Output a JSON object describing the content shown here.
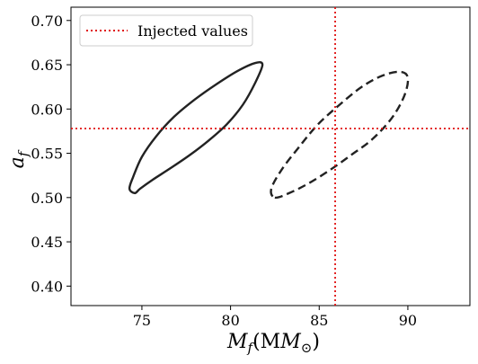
{
  "chart_data": {
    "type": "contour",
    "xlim": [
      71,
      93.5
    ],
    "ylim": [
      0.378,
      0.715
    ],
    "xticks": [
      75,
      80,
      85,
      90
    ],
    "yticks": [
      0.4,
      0.45,
      0.5,
      0.55,
      0.6,
      0.65,
      0.7
    ],
    "xtick_labels": [
      "75",
      "80",
      "85",
      "90"
    ],
    "ytick_labels": [
      "0.40",
      "0.45",
      "0.50",
      "0.55",
      "0.60",
      "0.65",
      "0.70"
    ],
    "xlabel_main": "M",
    "xlabel_sub": "f",
    "xlabel_unit_open": "(M",
    "xlabel_unit_sub": "⊙",
    "xlabel_unit_close": ")",
    "ylabel_main": "a",
    "ylabel_sub": "f",
    "legend_label": "Injected values",
    "legend_position": "upper-left",
    "injected": {
      "x": 85.9,
      "y": 0.578
    },
    "contours": [
      {
        "style": "solid",
        "points": [
          [
            74.6,
            0.505
          ],
          [
            74.9,
            0.51
          ],
          [
            75.6,
            0.52
          ],
          [
            76.6,
            0.533
          ],
          [
            77.7,
            0.548
          ],
          [
            78.8,
            0.565
          ],
          [
            79.8,
            0.583
          ],
          [
            80.7,
            0.605
          ],
          [
            81.4,
            0.63
          ],
          [
            81.8,
            0.65
          ],
          [
            81.4,
            0.652
          ],
          [
            80.4,
            0.643
          ],
          [
            79.2,
            0.628
          ],
          [
            78.0,
            0.611
          ],
          [
            76.8,
            0.591
          ],
          [
            75.8,
            0.569
          ],
          [
            75.0,
            0.546
          ],
          [
            74.5,
            0.523
          ],
          [
            74.3,
            0.51
          ],
          [
            74.6,
            0.505
          ]
        ]
      },
      {
        "style": "dashed",
        "points": [
          [
            82.5,
            0.5
          ],
          [
            83.3,
            0.505
          ],
          [
            84.4,
            0.516
          ],
          [
            85.6,
            0.531
          ],
          [
            86.8,
            0.548
          ],
          [
            88.0,
            0.566
          ],
          [
            89.1,
            0.59
          ],
          [
            89.8,
            0.615
          ],
          [
            90.0,
            0.635
          ],
          [
            89.6,
            0.642
          ],
          [
            88.6,
            0.638
          ],
          [
            87.4,
            0.625
          ],
          [
            86.1,
            0.604
          ],
          [
            84.9,
            0.582
          ],
          [
            83.9,
            0.558
          ],
          [
            82.9,
            0.532
          ],
          [
            82.3,
            0.51
          ],
          [
            82.5,
            0.5
          ]
        ]
      }
    ],
    "colors": {
      "injected_line": "#e01010",
      "contour": "#222222"
    }
  }
}
